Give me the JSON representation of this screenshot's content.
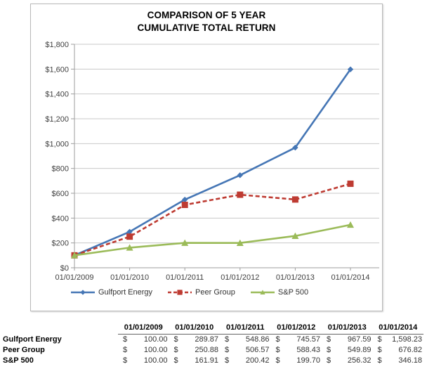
{
  "title": {
    "line1": "COMPARISON OF 5 YEAR",
    "line2": "CUMULATIVE TOTAL RETURN"
  },
  "chart_data": {
    "type": "line",
    "title": "COMPARISON OF 5 YEAR CUMULATIVE TOTAL RETURN",
    "categories": [
      "01/01/2009",
      "01/01/2010",
      "01/01/2011",
      "01/01/2012",
      "01/01/2013",
      "01/01/2014"
    ],
    "series": [
      {
        "name": "Gulfport Energy",
        "values": [
          100.0,
          289.87,
          548.86,
          745.57,
          967.59,
          1598.23
        ],
        "color": "#4576b5",
        "marker": "diamond",
        "line_style": "solid"
      },
      {
        "name": "Peer Group",
        "values": [
          100.0,
          250.88,
          506.57,
          588.43,
          549.89,
          676.82
        ],
        "color": "#be3b32",
        "marker": "square",
        "line_style": "dashed"
      },
      {
        "name": "S&P 500",
        "values": [
          100.0,
          161.91,
          200.42,
          199.7,
          256.32,
          346.18
        ],
        "color": "#9bbb59",
        "marker": "triangle",
        "line_style": "solid"
      }
    ],
    "xlabel": "",
    "ylabel": "",
    "ylim": [
      0,
      1800
    ],
    "ytick_step": 200,
    "ytick_labels": [
      "$0",
      "$200",
      "$400",
      "$600",
      "$800",
      "$1,000",
      "$1,200",
      "$1,400",
      "$1,600",
      "$1,800"
    ],
    "grid": true,
    "legend_position": "bottom"
  },
  "table": {
    "currency_symbol": "$",
    "col_headers": [
      "01/01/2009",
      "01/01/2010",
      "01/01/2011",
      "01/01/2012",
      "01/01/2013",
      "01/01/2014"
    ],
    "rows": [
      {
        "label": "Gulfport Energy",
        "values": [
          "100.00",
          "289.87",
          "548.86",
          "745.57",
          "967.59",
          "1,598.23"
        ]
      },
      {
        "label": "Peer Group",
        "values": [
          "100.00",
          "250.88",
          "506.57",
          "588.43",
          "549.89",
          "676.82"
        ]
      },
      {
        "label": "S&P 500",
        "values": [
          "100.00",
          "161.91",
          "200.42",
          "199.70",
          "256.32",
          "346.18"
        ]
      }
    ]
  },
  "colors": {
    "gulfport_blue": "#4576b5",
    "peer_red": "#be3b32",
    "sp500_green": "#9bbb59",
    "gridline": "#c9c9c9",
    "axis": "#9e9e9e",
    "axis_text": "#3f3f3f",
    "header_underline": "#666666"
  }
}
